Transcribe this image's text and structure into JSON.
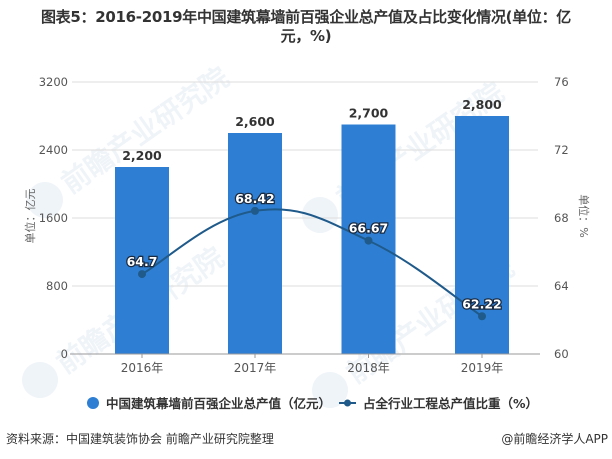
{
  "title": {
    "line1": "图表5：2016-2019年中国建筑幕墙前百强企业总产值及占比变化情况(单位：亿",
    "line2": "元，%)"
  },
  "chart_data": {
    "type": "bar+line",
    "title": "图表5：2016-2019年中国建筑幕墙前百强企业总产值及占比变化情况(单位：亿元，%)",
    "categories": [
      "2016年",
      "2017年",
      "2018年",
      "2019年"
    ],
    "series": [
      {
        "name": "中国建筑幕墙前百强企业总产值（亿元）",
        "type": "bar",
        "axis": "left",
        "values": [
          2200,
          2600,
          2700,
          2800
        ],
        "labels": [
          "2,200",
          "2,600",
          "2,700",
          "2,800"
        ],
        "color": "#2e7fd3"
      },
      {
        "name": "占全行业工程总产值比重（%）",
        "type": "line",
        "axis": "right",
        "values": [
          64.7,
          68.42,
          66.67,
          62.22
        ],
        "labels": [
          "64.7",
          "68.42",
          "66.67",
          "62.22"
        ],
        "color": "#1f5a8a"
      }
    ],
    "ylabel": "单位：亿元",
    "ylabel_right": "单位：%",
    "ylim": [
      0,
      3200
    ],
    "yticks": [
      "0",
      "800",
      "1600",
      "2400",
      "3200"
    ],
    "ylim_right": [
      60,
      76
    ],
    "yticks_right": [
      "60",
      "64",
      "68",
      "72",
      "76"
    ],
    "grid": true,
    "legend_position": "bottom"
  },
  "legend": {
    "bar_label": "中国建筑幕墙前百强企业总产值（亿元）",
    "line_label": "占全行业工程总产值比重（%）"
  },
  "footer": {
    "source": "资料来源：中国建筑装饰协会 前瞻产业研究院整理",
    "credit": "@前瞻经济学人APP"
  }
}
